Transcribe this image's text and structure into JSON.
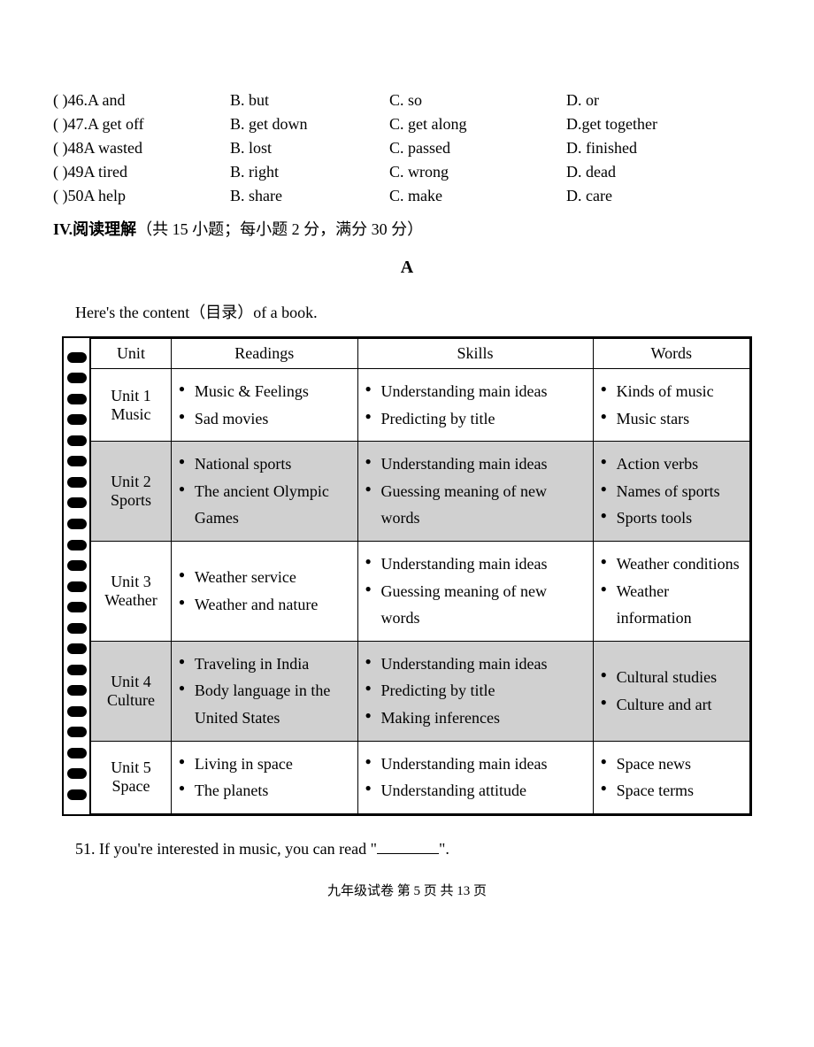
{
  "mcq": [
    {
      "q": "(       )46.A and",
      "b": "B. but",
      "c": "C. so",
      "d": "D. or"
    },
    {
      "q": "(       )47.A get off",
      "b": "B. get down",
      "c": "C. get along",
      "d": "D.get together"
    },
    {
      "q": "(       )48A wasted",
      "b": "B. lost",
      "c": "C. passed",
      "d": "D. finished"
    },
    {
      "q": "(       )49A tired",
      "b": "B. right",
      "c": "C. wrong",
      "d": "D. dead"
    },
    {
      "q": "(       )50A help",
      "b": "B. share",
      "c": "C. make",
      "d": "D. care"
    }
  ],
  "section_header_bold": "IV.阅读理解",
  "section_header_rest": "（共 15 小题；每小题 2 分，满分 30 分）",
  "section_letter": "A",
  "intro": "Here's the content（目录）of a book.",
  "table": {
    "headers": [
      "Unit",
      "Readings",
      "Skills",
      "Words"
    ],
    "rows": [
      {
        "shaded": false,
        "unit": "Unit 1 Music",
        "readings": [
          "Music & Feelings",
          "Sad movies"
        ],
        "skills": [
          "Understanding main ideas",
          "Predicting by title"
        ],
        "words": [
          "Kinds of music",
          "Music stars"
        ]
      },
      {
        "shaded": true,
        "unit": "Unit 2 Sports",
        "readings": [
          "National sports",
          "The ancient Olympic Games"
        ],
        "skills": [
          "Understanding main ideas",
          "Guessing meaning of new words"
        ],
        "words": [
          "Action verbs",
          "Names of sports",
          "Sports tools"
        ]
      },
      {
        "shaded": false,
        "unit": "Unit 3 Weather",
        "readings": [
          "Weather service",
          "Weather and nature"
        ],
        "skills": [
          "Understanding main ideas",
          "Guessing meaning of new words"
        ],
        "words": [
          "Weather conditions",
          "Weather information"
        ]
      },
      {
        "shaded": true,
        "unit": "Unit 4 Culture",
        "readings": [
          "Traveling in India",
          "Body language in the United States"
        ],
        "skills": [
          "Understanding main ideas",
          "Predicting by title",
          "Making inferences"
        ],
        "words": [
          "Cultural studies",
          "Culture and art"
        ]
      },
      {
        "shaded": false,
        "unit": "Unit 5 Space",
        "readings": [
          "Living in space",
          "The planets"
        ],
        "skills": [
          "Understanding main ideas",
          "Understanding attitude"
        ],
        "words": [
          "Space news",
          "Space terms"
        ]
      }
    ]
  },
  "question51_pre": "51. If you're interested in music, you can read \"",
  "question51_post": "\".",
  "footer": "九年级试卷 第 5 页 共 13 页",
  "binding_holes": 22
}
